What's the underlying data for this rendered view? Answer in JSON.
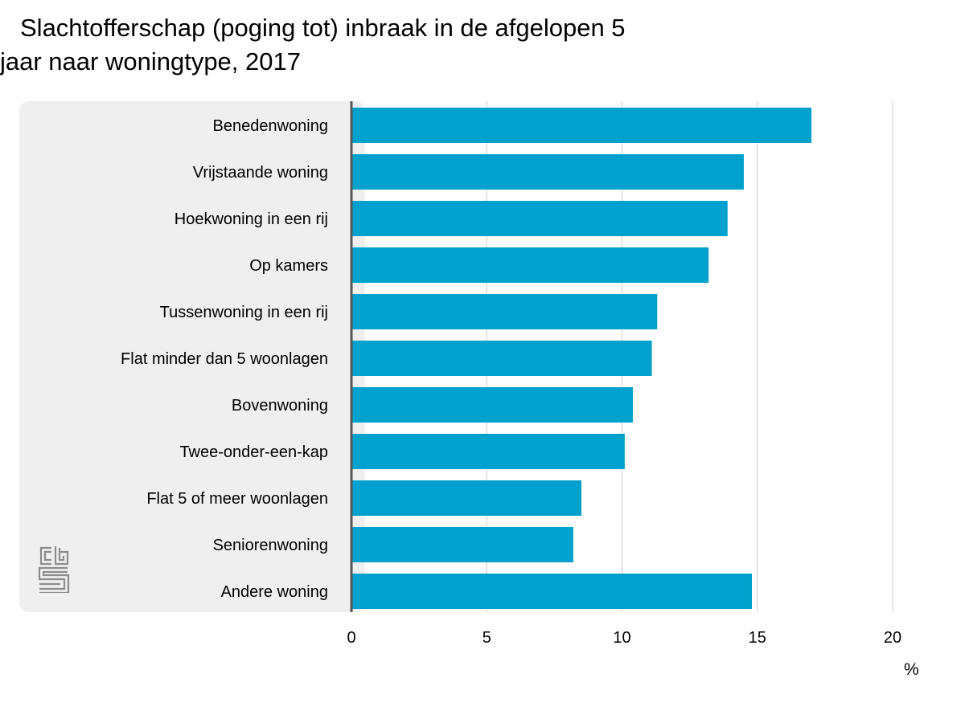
{
  "title": {
    "line1": "Slachtofferschap (poging tot) inbraak in de afgelopen 5",
    "line2": "jaar naar woningtype, 2017"
  },
  "unit": "%",
  "logo_icon": "cbs-logo-icon",
  "colors": {
    "bar": "#00a1cd",
    "panel": "#efefef",
    "grid": "#cccccc",
    "axis": "#555555"
  },
  "chart_data": {
    "type": "bar",
    "orientation": "horizontal",
    "title": "Slachtofferschap (poging tot) inbraak in de afgelopen 5 jaar naar woningtype, 2017",
    "xlabel": "%",
    "ylabel": "",
    "categories": [
      "Benedenwoning",
      "Vrijstaande woning",
      "Hoekwoning in een rij",
      "Op kamers",
      "Tussenwoning in een rij",
      "Flat minder dan 5 woonlagen",
      "Bovenwoning",
      "Twee-onder-een-kap",
      "Flat 5 of meer woonlagen",
      "Seniorenwoning",
      "Andere woning"
    ],
    "values": [
      17.0,
      14.5,
      13.9,
      13.2,
      11.3,
      11.1,
      10.4,
      10.1,
      8.5,
      8.2,
      14.8
    ],
    "xlim": [
      0,
      20
    ],
    "ticks": [
      0,
      5,
      10,
      15,
      20
    ],
    "grid": true
  }
}
